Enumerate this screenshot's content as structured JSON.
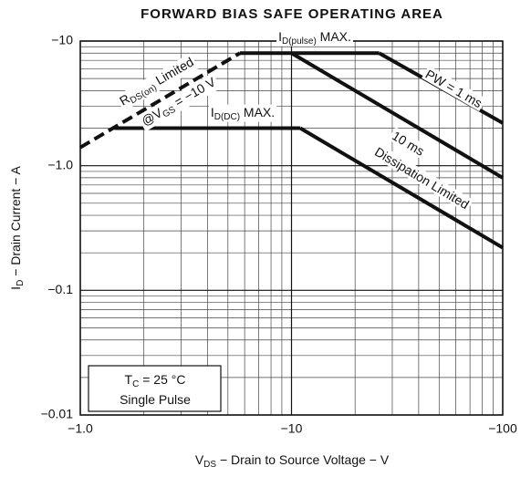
{
  "chart_data": {
    "type": "line",
    "title": "FORWARD BIAS SAFE OPERATING AREA",
    "x_label": {
      "parts": [
        {
          "text": "V"
        },
        {
          "text": "DS",
          "sub": true
        },
        {
          "text": " − Drain to Source Voltage − V"
        }
      ]
    },
    "y_label": {
      "parts": [
        {
          "text": "I"
        },
        {
          "text": "D",
          "sub": true
        },
        {
          "text": " − Drain Current − A"
        }
      ]
    },
    "xscale": "log",
    "yscale": "log",
    "grid": true,
    "minor_grid": true,
    "xlim": [
      -1,
      -100
    ],
    "ylim": [
      -0.01,
      -10
    ],
    "xticks": [
      {
        "value": -1,
        "label": "−1.0"
      },
      {
        "value": -10,
        "label": "−10"
      },
      {
        "value": -100,
        "label": "−100"
      }
    ],
    "yticks": [
      {
        "value": -0.01,
        "label": "−0.01"
      },
      {
        "value": -0.1,
        "label": "−0.1"
      },
      {
        "value": -1,
        "label": "−1.0"
      },
      {
        "value": -10,
        "label": "−10"
      }
    ],
    "series": [
      {
        "color": "#111111",
        "dashed": true,
        "x": [
          -1,
          -5.7
        ],
        "values": [
          -1.4,
          -8
        ]
      },
      {
        "color": "#111111",
        "x": [
          -5.7,
          -26
        ],
        "values": [
          -8,
          -8
        ]
      },
      {
        "color": "#111111",
        "x": [
          -26,
          -100
        ],
        "values": [
          -8,
          -2.2
        ]
      },
      {
        "color": "#111111",
        "x": [
          -10,
          -100
        ],
        "values": [
          -8,
          -0.8
        ]
      },
      {
        "color": "#111111",
        "x": [
          -1.45,
          -11
        ],
        "values": [
          -2,
          -2
        ]
      },
      {
        "color": "#111111",
        "x": [
          -11,
          -100
        ],
        "values": [
          -2,
          -0.22
        ]
      }
    ],
    "annotations": [
      {
        "parts": [
          {
            "text": "R"
          },
          {
            "text": "DS(on)",
            "sub": true
          },
          {
            "text": " Limited"
          }
        ]
      },
      {
        "parts": [
          {
            "text": "@V"
          },
          {
            "text": "GS",
            "sub": true
          },
          {
            "text": " = −10 V"
          }
        ]
      },
      {
        "parts": [
          {
            "text": "I"
          },
          {
            "text": "D(pulse)",
            "sub": true
          },
          {
            "text": " MAX."
          }
        ]
      },
      {
        "parts": [
          {
            "text": "I"
          },
          {
            "text": "D(DC)",
            "sub": true
          },
          {
            "text": " MAX."
          }
        ]
      },
      {
        "parts": [
          {
            "text": "PW = 1 ms"
          }
        ]
      },
      {
        "parts": [
          {
            "text": "10 ms"
          }
        ]
      },
      {
        "parts": [
          {
            "text": "Dissipation Limited"
          }
        ]
      },
      {
        "parts": [
          {
            "text": "T"
          },
          {
            "text": "C",
            "sub": true
          },
          {
            "text": " = 25 °C"
          }
        ]
      },
      {
        "parts": [
          {
            "text": "Single Pulse"
          }
        ]
      }
    ]
  }
}
